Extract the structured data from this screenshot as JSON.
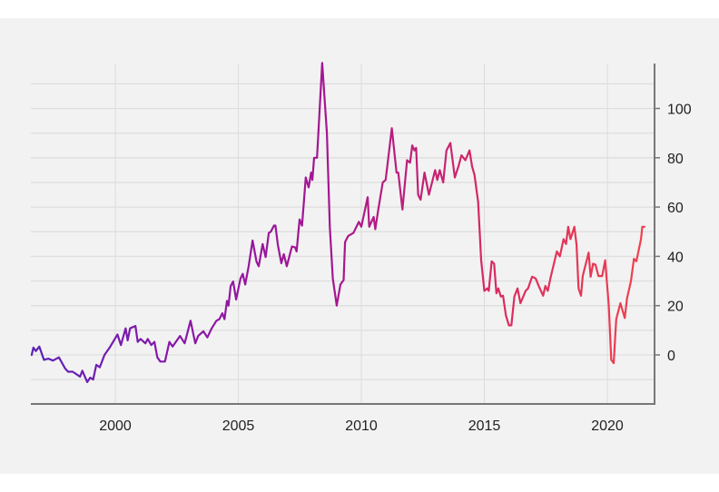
{
  "chart_data": {
    "type": "line",
    "title": "",
    "xlabel": "",
    "ylabel": "",
    "xlim": [
      1996.6,
      2021.9
    ],
    "ylim": [
      -20,
      118
    ],
    "y_axis_side": "right",
    "grid": true,
    "x_ticks": [
      2000,
      2005,
      2010,
      2015,
      2020
    ],
    "x_tick_labels": [
      "2000",
      "2005",
      "2010",
      "2015",
      "2020"
    ],
    "y_ticks": [
      0,
      20,
      40,
      60,
      80,
      100
    ],
    "y_tick_labels": [
      "0",
      "20",
      "40",
      "60",
      "80",
      "100"
    ],
    "y_minor_grid_step": 10,
    "line_gradient_colors": [
      "#5b22b8",
      "#8a17a8",
      "#a6168f",
      "#d82a62",
      "#f0414e"
    ],
    "series": [
      {
        "name": "series",
        "x": [
          1996.6,
          1996.67,
          1996.77,
          1996.91,
          1997.1,
          1997.28,
          1997.47,
          1997.71,
          1997.96,
          1998.08,
          1998.27,
          1998.57,
          1998.66,
          1998.86,
          1998.98,
          1999.1,
          1999.23,
          1999.37,
          1999.56,
          1999.77,
          2000.09,
          2000.23,
          2000.42,
          2000.5,
          2000.6,
          2000.82,
          2000.91,
          2001.03,
          2001.22,
          2001.32,
          2001.46,
          2001.59,
          2001.71,
          2001.83,
          2002.02,
          2002.2,
          2002.33,
          2002.63,
          2002.82,
          2003.06,
          2003.25,
          2003.37,
          2003.58,
          2003.74,
          2003.92,
          2004.11,
          2004.23,
          2004.35,
          2004.44,
          2004.54,
          2004.6,
          2004.69,
          2004.79,
          2004.91,
          2005.09,
          2005.18,
          2005.28,
          2005.42,
          2005.58,
          2005.74,
          2005.83,
          2005.99,
          2006.11,
          2006.24,
          2006.32,
          2006.45,
          2006.51,
          2006.61,
          2006.75,
          2006.85,
          2006.97,
          2007.18,
          2007.31,
          2007.37,
          2007.49,
          2007.59,
          2007.74,
          2007.86,
          2007.96,
          2008.01,
          2008.08,
          2008.2,
          2008.41,
          2008.6,
          2008.72,
          2008.84,
          2009.0,
          2009.15,
          2009.28,
          2009.34,
          2009.46,
          2009.68,
          2009.9,
          2010.0,
          2010.26,
          2010.32,
          2010.5,
          2010.57,
          2010.69,
          2010.87,
          2010.99,
          2011.24,
          2011.43,
          2011.5,
          2011.67,
          2011.86,
          2011.98,
          2012.07,
          2012.16,
          2012.23,
          2012.31,
          2012.41,
          2012.57,
          2012.75,
          2013.0,
          2013.09,
          2013.19,
          2013.33,
          2013.46,
          2013.62,
          2013.8,
          2013.95,
          2014.07,
          2014.23,
          2014.4,
          2014.5,
          2014.6,
          2014.75,
          2014.87,
          2015.0,
          2015.12,
          2015.18,
          2015.3,
          2015.4,
          2015.49,
          2015.57,
          2015.67,
          2015.76,
          2015.88,
          2016.0,
          2016.1,
          2016.22,
          2016.35,
          2016.47,
          2016.68,
          2016.78,
          2016.94,
          2017.09,
          2017.21,
          2017.39,
          2017.48,
          2017.58,
          2017.7,
          2017.95,
          2018.07,
          2018.22,
          2018.32,
          2018.41,
          2018.5,
          2018.66,
          2018.75,
          2018.83,
          2018.93,
          2019.0,
          2019.24,
          2019.32,
          2019.42,
          2019.52,
          2019.64,
          2019.79,
          2019.91,
          2020.06,
          2020.16,
          2020.26,
          2020.36,
          2020.53,
          2020.71,
          2020.8,
          2020.96,
          2021.08,
          2021.18,
          2021.37,
          2021.42,
          2021.51
        ],
        "y": [
          0,
          3,
          1.6,
          3.4,
          -2,
          -1.5,
          -2.3,
          -1,
          -5.5,
          -6.8,
          -6.8,
          -8.8,
          -6.4,
          -11,
          -9.2,
          -10,
          -4,
          -5,
          0,
          3,
          8.3,
          4,
          10.8,
          5.9,
          10.8,
          11.7,
          5.3,
          6.5,
          4.7,
          6.5,
          4,
          5.3,
          -1,
          -2.7,
          -2.7,
          5.3,
          3.4,
          7.7,
          4.7,
          13.9,
          4.7,
          7.7,
          9.6,
          7.1,
          10.8,
          13.9,
          14.5,
          16.9,
          14.5,
          21.9,
          20,
          28,
          29.8,
          22.5,
          31,
          32.9,
          28.6,
          36,
          46.4,
          37.8,
          36,
          45,
          39.7,
          49.5,
          50,
          52.5,
          52.5,
          44.6,
          37.2,
          40.9,
          36,
          44,
          43.6,
          42,
          55,
          52.5,
          72,
          68,
          74,
          71,
          80,
          80,
          118.5,
          90,
          52,
          31,
          20,
          28.6,
          30.4,
          45.8,
          48.2,
          49.5,
          54,
          52,
          64,
          52,
          56,
          51,
          59,
          70,
          71,
          92,
          74,
          74,
          59,
          79,
          78,
          85,
          83,
          84,
          65,
          63,
          74,
          65,
          75,
          71,
          75,
          70,
          83,
          86,
          72,
          76.5,
          81,
          79,
          83,
          76.5,
          73,
          62,
          38.5,
          26,
          27,
          26,
          38,
          37,
          25,
          27,
          23.7,
          24,
          16,
          12,
          12,
          23.7,
          27,
          21,
          26,
          27,
          31.7,
          31,
          28,
          24,
          28,
          26,
          31.7,
          42,
          40,
          47,
          45,
          52,
          47,
          52,
          44.6,
          27,
          24,
          32,
          41.5,
          31.7,
          37,
          36.6,
          32,
          32,
          38.4,
          20,
          -2,
          -3.3,
          14.5,
          21,
          15,
          23,
          30,
          39,
          38,
          47,
          52,
          52
        ]
      }
    ]
  }
}
